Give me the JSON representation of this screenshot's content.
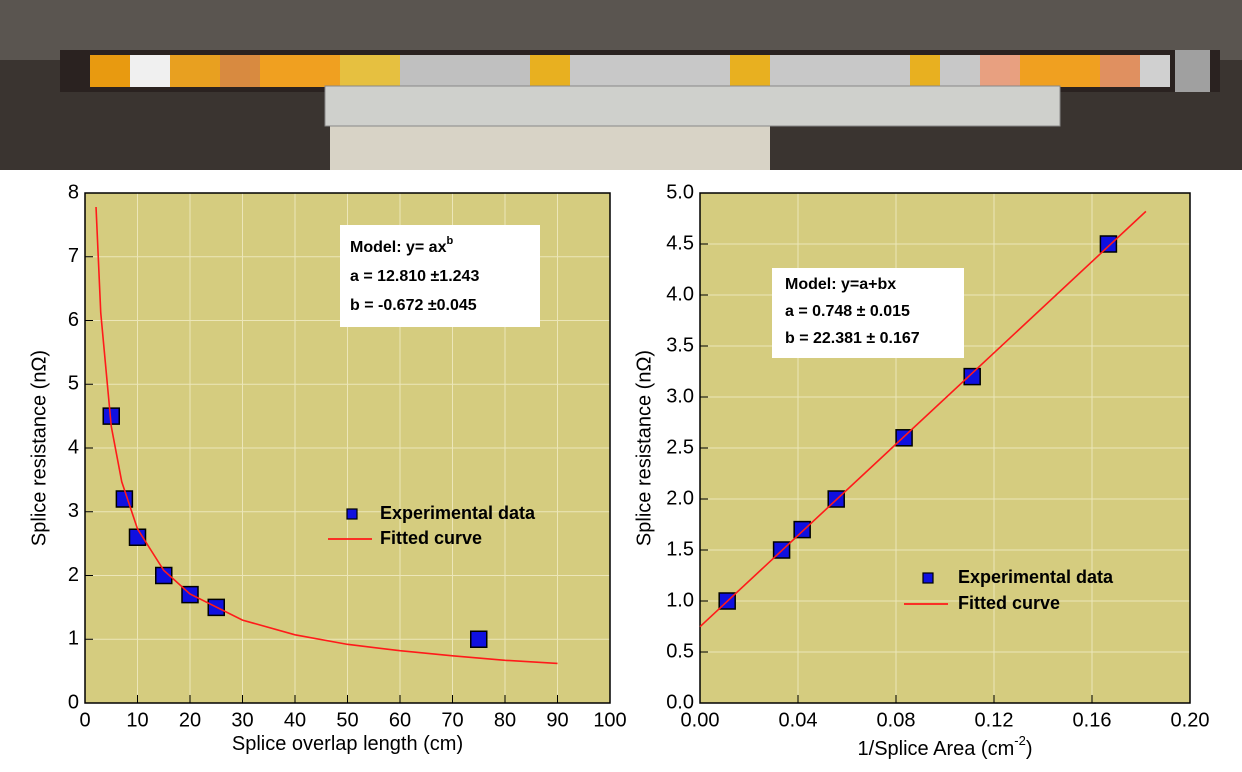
{
  "chart_data": [
    {
      "type": "scatter",
      "x_label": "Splice overlap length (cm)",
      "y_label": "Splice resistance (nΩ)",
      "xlim": [
        0,
        100
      ],
      "xticks": [
        0,
        10,
        20,
        30,
        40,
        50,
        60,
        70,
        80,
        90,
        100
      ],
      "ylim": [
        0,
        8
      ],
      "yticks": [
        0,
        1,
        2,
        3,
        4,
        5,
        6,
        7,
        8
      ],
      "grid": true,
      "background": "#d5cc7f",
      "annotation": {
        "model": "Model: y= ax",
        "model_sup": "b",
        "lines": [
          "a = 12.810 ±1.243",
          "b = -0.672 ±0.045"
        ]
      },
      "series": [
        {
          "name": "Experimental data",
          "mode": "markers",
          "color": "#1010e0",
          "x": [
            5,
            7.5,
            10,
            15,
            20,
            25,
            75
          ],
          "values": [
            4.5,
            3.2,
            2.6,
            2.0,
            1.7,
            1.5,
            1.0
          ]
        },
        {
          "name": "Fitted curve",
          "mode": "lines",
          "color": "#ff1a1a",
          "x": [
            2.1,
            3,
            5,
            7,
            10,
            15,
            20,
            30,
            40,
            50,
            60,
            70,
            80,
            90
          ],
          "values": [
            7.78,
            6.12,
            4.34,
            3.47,
            2.73,
            2.08,
            1.71,
            1.3,
            1.07,
            0.92,
            0.82,
            0.74,
            0.67,
            0.62
          ]
        }
      ]
    },
    {
      "type": "scatter",
      "x_label": "1/Splice Area (cm",
      "x_label_sup": "-2",
      "x_label_end": ")",
      "y_label": "Splice resistance (nΩ)",
      "xlim": [
        0,
        0.2
      ],
      "xticks": [
        {
          "value": 0,
          "label": "0.00"
        },
        0.04,
        0.08,
        0.12,
        0.16,
        {
          "value": 0.2,
          "label": "0.20"
        }
      ],
      "ylim": [
        0,
        5
      ],
      "yticks": [
        {
          "value": 0,
          "label": "0.0"
        },
        0.5,
        {
          "value": 1,
          "label": "1.0"
        },
        1.5,
        {
          "value": 2,
          "label": "2.0"
        },
        2.5,
        {
          "value": 3,
          "label": "3.0"
        },
        3.5,
        {
          "value": 4,
          "label": "4.0"
        },
        4.5,
        {
          "value": 5,
          "label": "5.0"
        }
      ],
      "grid": true,
      "background": "#d5cc7f",
      "annotation": {
        "model": "Model: y=a+bx",
        "lines": [
          "a = 0.748  ± 0.015",
          "b = 22.381 ± 0.167"
        ]
      },
      "series": [
        {
          "name": "Experimental data",
          "mode": "markers",
          "color": "#1010e0",
          "x": [
            0.0111,
            0.0333,
            0.0417,
            0.0556,
            0.0833,
            0.1111,
            0.1667
          ],
          "values": [
            1.0,
            1.5,
            1.7,
            2.0,
            2.6,
            3.2,
            4.5
          ]
        },
        {
          "name": "Fitted curve",
          "mode": "lines",
          "color": "#ff1a1a",
          "x": [
            0,
            0.182
          ],
          "values": [
            0.748,
            4.82
          ]
        }
      ]
    }
  ]
}
